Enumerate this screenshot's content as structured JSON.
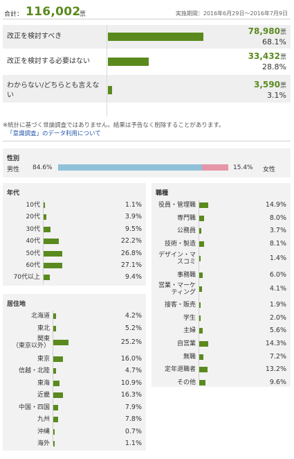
{
  "header": {
    "total_label": "合計：",
    "total_value": "116,002",
    "total_unit": "票",
    "period": "実施期間：2016年6月29日〜2016年7月9日"
  },
  "colors": {
    "accent": "#5a8a1e",
    "male": "#8fc1d8",
    "female": "#e596a8"
  },
  "note": "※統計に基づく世論調査ではありません。結果は予告なく削除することがあります。",
  "note_link": "「意識調査」のデータ利用について",
  "chart_data": [
    {
      "type": "bar",
      "title": "",
      "categories": [
        "改正を検討すべき",
        "改正を検討する必要はない",
        "わからない/どちらとも言えない"
      ],
      "votes": [
        "78,980",
        "33,432",
        "3,590"
      ],
      "vote_unit": "票",
      "values": [
        68.1,
        28.8,
        3.1
      ],
      "pct_labels": [
        "68.1%",
        "28.8%",
        "3.1%"
      ]
    },
    {
      "type": "bar",
      "title": "性別",
      "categories": [
        "男性",
        "女性"
      ],
      "values": [
        84.6,
        15.4
      ],
      "pct_labels": [
        "84.6%",
        "15.4%"
      ]
    },
    {
      "type": "bar",
      "title": "年代",
      "categories": [
        "10代",
        "20代",
        "30代",
        "40代",
        "50代",
        "60代",
        "70代以上"
      ],
      "values": [
        1.1,
        3.9,
        9.5,
        22.2,
        26.8,
        27.1,
        9.4
      ],
      "pct_labels": [
        "1.1%",
        "3.9%",
        "9.5%",
        "22.2%",
        "26.8%",
        "27.1%",
        "9.4%"
      ]
    },
    {
      "type": "bar",
      "title": "居住地",
      "categories": [
        "北海道",
        "東北",
        "関東\n（東京以外）",
        "東京",
        "信越・北陸",
        "東海",
        "近畿",
        "中国・四国",
        "九州",
        "沖縄",
        "海外"
      ],
      "values": [
        4.2,
        5.2,
        25.2,
        16.0,
        4.7,
        10.9,
        16.3,
        7.9,
        7.8,
        0.7,
        1.1
      ],
      "pct_labels": [
        "4.2%",
        "5.2%",
        "25.2%",
        "16.0%",
        "4.7%",
        "10.9%",
        "16.3%",
        "7.9%",
        "7.8%",
        "0.7%",
        "1.1%"
      ]
    },
    {
      "type": "bar",
      "title": "職種",
      "categories": [
        "役員・管理職",
        "専門職",
        "公務員",
        "技術・製造",
        "デザイン・マ\nスコミ",
        "事務職",
        "営業・マーケ\nティング",
        "接客・販売",
        "学生",
        "主婦",
        "自営業",
        "無職",
        "定年退職者",
        "その他"
      ],
      "values": [
        14.9,
        8.0,
        3.7,
        8.1,
        1.4,
        6.0,
        4.1,
        1.9,
        2.0,
        5.6,
        14.3,
        7.2,
        13.2,
        9.6
      ],
      "pct_labels": [
        "14.9%",
        "8.0%",
        "3.7%",
        "8.1%",
        "1.4%",
        "6.0%",
        "4.1%",
        "1.9%",
        "2.0%",
        "5.6%",
        "14.3%",
        "7.2%",
        "13.2%",
        "9.6%"
      ]
    }
  ]
}
